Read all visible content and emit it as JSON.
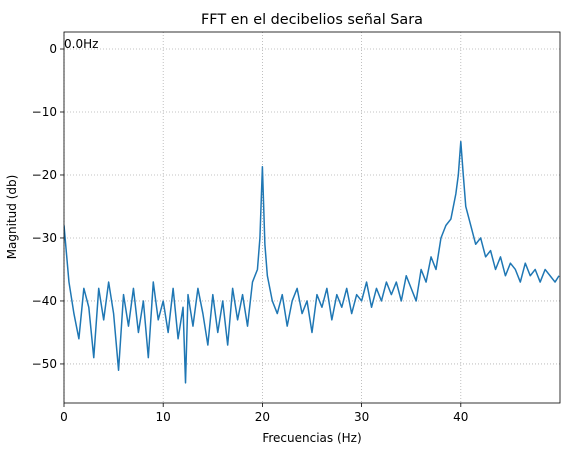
{
  "chart_data": {
    "type": "line",
    "title": "FFT en el decibelios señal Sara",
    "xlabel": "Frecuencias (Hz)",
    "ylabel": "Magnitud (db)",
    "annotation": {
      "text": "0.0Hz",
      "x": 0,
      "y": 0
    },
    "grid": true,
    "xlim": [
      0,
      50
    ],
    "ylim": [
      -56.2,
      2.7
    ],
    "xticks": [
      0,
      10,
      20,
      30,
      40
    ],
    "yticks": [
      {
        "value": -50,
        "label": "−50"
      },
      {
        "value": -40,
        "label": "−40"
      },
      {
        "value": -30,
        "label": "−30"
      },
      {
        "value": -20,
        "label": "−20"
      },
      {
        "value": -10,
        "label": "−10"
      },
      0
    ],
    "x": [
      0,
      0.5,
      1,
      1.5,
      2,
      2.5,
      3,
      3.5,
      4,
      4.5,
      5,
      5.5,
      6,
      6.5,
      7,
      7.5,
      8,
      8.5,
      9,
      9.5,
      10,
      10.5,
      11,
      11.5,
      12,
      12.25,
      12.5,
      13,
      13.5,
      14,
      14.5,
      15,
      15.5,
      16,
      16.5,
      17,
      17.5,
      18,
      18.5,
      19,
      19.5,
      19.75,
      20,
      20.25,
      20.5,
      21,
      21.5,
      22,
      22.5,
      23,
      23.5,
      24,
      24.5,
      25,
      25.5,
      26,
      26.5,
      27,
      27.5,
      28,
      28.5,
      29,
      29.5,
      30,
      30.5,
      31,
      31.5,
      32,
      32.5,
      33,
      33.5,
      34,
      34.5,
      35,
      35.5,
      36,
      36.5,
      37,
      37.5,
      38,
      38.5,
      39,
      39.5,
      39.75,
      40,
      40.25,
      40.5,
      41,
      41.5,
      42,
      42.5,
      43,
      43.5,
      44,
      44.5,
      45,
      45.5,
      46,
      46.5,
      47,
      47.5,
      48,
      48.5,
      49,
      49.5,
      49.9
    ],
    "series": [
      {
        "name": "FFT",
        "color": "#1f77b4",
        "values": [
          -28,
          -37,
          -42,
          -46,
          -38,
          -41,
          -49,
          -38,
          -43,
          -37,
          -42,
          -51,
          -39,
          -44,
          -38,
          -45,
          -40,
          -49,
          -37,
          -43,
          -40,
          -45,
          -38,
          -46,
          -41,
          -53,
          -39,
          -44,
          -38,
          -42,
          -47,
          -39,
          -45,
          -40,
          -47,
          -38,
          -43,
          -39,
          -44,
          -37,
          -35,
          -30,
          -18.7,
          -31,
          -36,
          -40,
          -42,
          -39,
          -44,
          -40,
          -38,
          -42,
          -40,
          -45,
          -39,
          -41,
          -38,
          -43,
          -39,
          -41,
          -38,
          -42,
          -39,
          -40,
          -37,
          -41,
          -38,
          -40,
          -37,
          -39,
          -37,
          -40,
          -36,
          -38,
          -40,
          -35,
          -37,
          -33,
          -35,
          -30,
          -28,
          -27,
          -23,
          -20,
          -14.7,
          -20,
          -25,
          -28,
          -31,
          -30,
          -33,
          -32,
          -35,
          -33,
          -36,
          -34,
          -35,
          -37,
          -34,
          -36,
          -35,
          -37,
          -35,
          -36,
          -37,
          -36
        ]
      }
    ]
  }
}
